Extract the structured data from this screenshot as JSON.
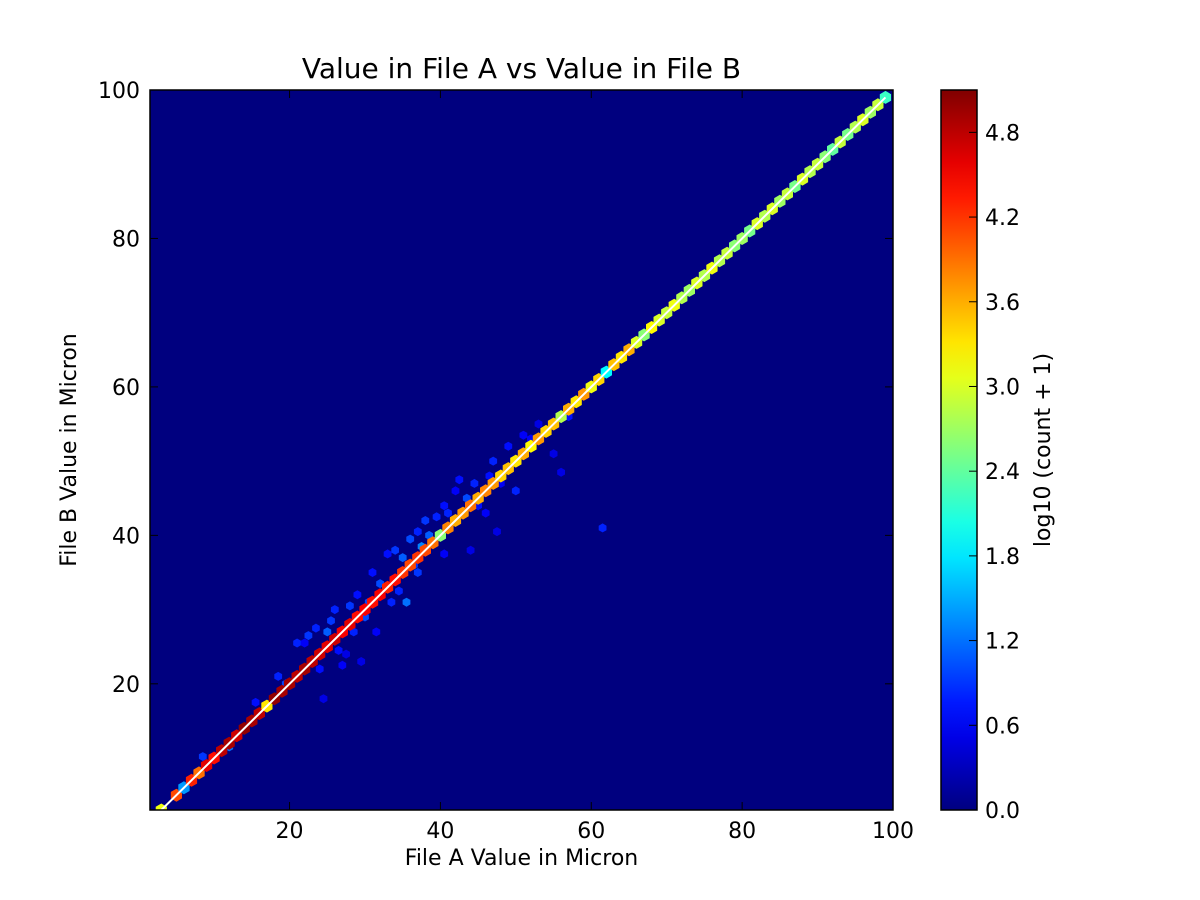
{
  "chart_data": {
    "type": "heatmap",
    "subtype": "hexbin",
    "title": "Value in File A vs Value in File B",
    "xlabel": "File A Value in Micron",
    "ylabel": "File B Value in Micron",
    "xlim": [
      1.5,
      100
    ],
    "ylim": [
      3,
      100
    ],
    "xticks": [
      20,
      40,
      60,
      80,
      100
    ],
    "yticks": [
      20,
      40,
      60,
      80,
      100
    ],
    "colorbar": {
      "label": "log10 (count + 1)",
      "range": [
        0,
        5.1
      ],
      "ticks": [
        0.0,
        0.6,
        1.2,
        1.8,
        2.4,
        3.0,
        3.6,
        4.2,
        4.8
      ],
      "colormap": "jet"
    },
    "grid": false,
    "background_color": "#00007f",
    "reference_line": {
      "x": [
        3,
        99
      ],
      "y": [
        3,
        99
      ],
      "color": "#ffffff",
      "style": "solid"
    },
    "diagonal_bins": [
      {
        "x": 3,
        "v": 3.1
      },
      {
        "x": 5,
        "v": 4.1
      },
      {
        "x": 6,
        "v": 1.4
      },
      {
        "x": 7,
        "v": 4.3
      },
      {
        "x": 8,
        "v": 3.9
      },
      {
        "x": 9,
        "v": 4.6
      },
      {
        "x": 10,
        "v": 4.4
      },
      {
        "x": 11,
        "v": 4.8
      },
      {
        "x": 12,
        "v": 4.9
      },
      {
        "x": 13,
        "v": 4.7
      },
      {
        "x": 14,
        "v": 5.0
      },
      {
        "x": 15,
        "v": 4.9
      },
      {
        "x": 16,
        "v": 4.8
      },
      {
        "x": 17,
        "v": 3.3
      },
      {
        "x": 18,
        "v": 5.0
      },
      {
        "x": 19,
        "v": 4.9
      },
      {
        "x": 20,
        "v": 4.9
      },
      {
        "x": 21,
        "v": 4.8
      },
      {
        "x": 22,
        "v": 4.9
      },
      {
        "x": 23,
        "v": 4.8
      },
      {
        "x": 24,
        "v": 4.7
      },
      {
        "x": 25,
        "v": 4.6
      },
      {
        "x": 26,
        "v": 4.7
      },
      {
        "x": 27,
        "v": 4.5
      },
      {
        "x": 28,
        "v": 4.6
      },
      {
        "x": 29,
        "v": 4.4
      },
      {
        "x": 30,
        "v": 4.5
      },
      {
        "x": 31,
        "v": 4.4
      },
      {
        "x": 32,
        "v": 4.5
      },
      {
        "x": 33,
        "v": 4.3
      },
      {
        "x": 34,
        "v": 4.4
      },
      {
        "x": 35,
        "v": 4.2
      },
      {
        "x": 36,
        "v": 4.1
      },
      {
        "x": 37,
        "v": 4.2
      },
      {
        "x": 38,
        "v": 4.1
      },
      {
        "x": 39,
        "v": 3.9
      },
      {
        "x": 40,
        "v": 2.6
      },
      {
        "x": 41,
        "v": 3.8
      },
      {
        "x": 42,
        "v": 3.6
      },
      {
        "x": 43,
        "v": 3.7
      },
      {
        "x": 44,
        "v": 3.9
      },
      {
        "x": 45,
        "v": 3.6
      },
      {
        "x": 46,
        "v": 3.8
      },
      {
        "x": 47,
        "v": 3.7
      },
      {
        "x": 48,
        "v": 3.4
      },
      {
        "x": 49,
        "v": 3.5
      },
      {
        "x": 50,
        "v": 3.3
      },
      {
        "x": 51,
        "v": 3.6
      },
      {
        "x": 52,
        "v": 3.2
      },
      {
        "x": 53,
        "v": 3.7
      },
      {
        "x": 54,
        "v": 3.4
      },
      {
        "x": 55,
        "v": 3.5
      },
      {
        "x": 56,
        "v": 2.8
      },
      {
        "x": 57,
        "v": 3.6
      },
      {
        "x": 58,
        "v": 3.3
      },
      {
        "x": 59,
        "v": 3.7
      },
      {
        "x": 60,
        "v": 3.1
      },
      {
        "x": 61,
        "v": 3.4
      },
      {
        "x": 62,
        "v": 1.9
      },
      {
        "x": 63,
        "v": 3.5
      },
      {
        "x": 64,
        "v": 3.3
      },
      {
        "x": 65,
        "v": 3.6
      },
      {
        "x": 66,
        "v": 3.0
      },
      {
        "x": 67,
        "v": 2.6
      },
      {
        "x": 68,
        "v": 3.2
      },
      {
        "x": 69,
        "v": 3.0
      },
      {
        "x": 70,
        "v": 2.9
      },
      {
        "x": 71,
        "v": 3.1
      },
      {
        "x": 72,
        "v": 2.8
      },
      {
        "x": 73,
        "v": 2.7
      },
      {
        "x": 74,
        "v": 3.0
      },
      {
        "x": 75,
        "v": 2.8
      },
      {
        "x": 76,
        "v": 3.1
      },
      {
        "x": 77,
        "v": 2.8
      },
      {
        "x": 78,
        "v": 2.9
      },
      {
        "x": 79,
        "v": 2.6
      },
      {
        "x": 80,
        "v": 2.7
      },
      {
        "x": 81,
        "v": 2.5
      },
      {
        "x": 82,
        "v": 3.0
      },
      {
        "x": 83,
        "v": 2.8
      },
      {
        "x": 84,
        "v": 3.0
      },
      {
        "x": 85,
        "v": 2.7
      },
      {
        "x": 86,
        "v": 2.9
      },
      {
        "x": 87,
        "v": 2.5
      },
      {
        "x": 88,
        "v": 3.0
      },
      {
        "x": 89,
        "v": 2.8
      },
      {
        "x": 90,
        "v": 2.9
      },
      {
        "x": 91,
        "v": 2.6
      },
      {
        "x": 92,
        "v": 2.4
      },
      {
        "x": 93,
        "v": 2.9
      },
      {
        "x": 94,
        "v": 2.5
      },
      {
        "x": 95,
        "v": 2.8
      },
      {
        "x": 96,
        "v": 3.0
      },
      {
        "x": 97,
        "v": 2.7
      },
      {
        "x": 98,
        "v": 2.9
      },
      {
        "x": 99,
        "v": 2.2
      }
    ],
    "scatter_bins": [
      {
        "x": 8.5,
        "y": 10.2,
        "v": 0.9
      },
      {
        "x": 12.0,
        "y": 11.5,
        "v": 1.2
      },
      {
        "x": 15.5,
        "y": 17.5,
        "v": 0.7
      },
      {
        "x": 18.5,
        "y": 21.0,
        "v": 0.8
      },
      {
        "x": 19.5,
        "y": 20.0,
        "v": 1.0
      },
      {
        "x": 21.0,
        "y": 25.5,
        "v": 0.8
      },
      {
        "x": 22.0,
        "y": 25.5,
        "v": 0.6
      },
      {
        "x": 22.5,
        "y": 26.5,
        "v": 0.9
      },
      {
        "x": 23.5,
        "y": 27.5,
        "v": 0.8
      },
      {
        "x": 24.0,
        "y": 22.0,
        "v": 0.7
      },
      {
        "x": 24.5,
        "y": 18.0,
        "v": 0.5
      },
      {
        "x": 25.0,
        "y": 27.0,
        "v": 1.1
      },
      {
        "x": 25.5,
        "y": 28.5,
        "v": 0.9
      },
      {
        "x": 26.0,
        "y": 30.0,
        "v": 0.8
      },
      {
        "x": 26.5,
        "y": 24.5,
        "v": 0.7
      },
      {
        "x": 27.0,
        "y": 22.5,
        "v": 0.6
      },
      {
        "x": 27.5,
        "y": 24.0,
        "v": 0.5
      },
      {
        "x": 28.0,
        "y": 30.5,
        "v": 0.9
      },
      {
        "x": 28.5,
        "y": 27.0,
        "v": 0.8
      },
      {
        "x": 29.0,
        "y": 32.0,
        "v": 0.7
      },
      {
        "x": 29.5,
        "y": 23.0,
        "v": 0.5
      },
      {
        "x": 30.0,
        "y": 29.0,
        "v": 1.0
      },
      {
        "x": 31.0,
        "y": 35.0,
        "v": 0.7
      },
      {
        "x": 31.5,
        "y": 27.0,
        "v": 0.6
      },
      {
        "x": 32.0,
        "y": 33.5,
        "v": 1.0
      },
      {
        "x": 33.0,
        "y": 37.5,
        "v": 0.7
      },
      {
        "x": 33.5,
        "y": 31.0,
        "v": 0.8
      },
      {
        "x": 34.0,
        "y": 38.0,
        "v": 0.9
      },
      {
        "x": 34.5,
        "y": 32.5,
        "v": 0.8
      },
      {
        "x": 35.0,
        "y": 37.0,
        "v": 1.1
      },
      {
        "x": 35.5,
        "y": 31.0,
        "v": 1.2
      },
      {
        "x": 36.0,
        "y": 39.5,
        "v": 1.0
      },
      {
        "x": 36.5,
        "y": 36.0,
        "v": 0.9
      },
      {
        "x": 37.0,
        "y": 40.5,
        "v": 0.8
      },
      {
        "x": 37.5,
        "y": 38.5,
        "v": 1.3
      },
      {
        "x": 38.0,
        "y": 42.0,
        "v": 0.9
      },
      {
        "x": 38.5,
        "y": 40.0,
        "v": 1.1
      },
      {
        "x": 39.5,
        "y": 42.5,
        "v": 0.8
      },
      {
        "x": 40.5,
        "y": 44.0,
        "v": 0.7
      },
      {
        "x": 40.5,
        "y": 37.5,
        "v": 0.6
      },
      {
        "x": 41.0,
        "y": 43.0,
        "v": 0.8
      },
      {
        "x": 42.0,
        "y": 46.0,
        "v": 0.6
      },
      {
        "x": 42.5,
        "y": 47.5,
        "v": 0.7
      },
      {
        "x": 43.5,
        "y": 45.0,
        "v": 1.0
      },
      {
        "x": 44.5,
        "y": 47.0,
        "v": 0.8
      },
      {
        "x": 45.0,
        "y": 44.0,
        "v": 0.7
      },
      {
        "x": 46.0,
        "y": 43.0,
        "v": 0.6
      },
      {
        "x": 46.5,
        "y": 48.0,
        "v": 0.7
      },
      {
        "x": 47.0,
        "y": 50.0,
        "v": 0.8
      },
      {
        "x": 47.5,
        "y": 40.5,
        "v": 0.5
      },
      {
        "x": 48.0,
        "y": 47.0,
        "v": 0.6
      },
      {
        "x": 49.0,
        "y": 52.0,
        "v": 0.7
      },
      {
        "x": 50.0,
        "y": 46.0,
        "v": 0.8
      },
      {
        "x": 51.0,
        "y": 53.5,
        "v": 0.6
      },
      {
        "x": 52.0,
        "y": 53.0,
        "v": 0.6
      },
      {
        "x": 53.0,
        "y": 55.0,
        "v": 0.5
      },
      {
        "x": 55.0,
        "y": 51.0,
        "v": 0.5
      },
      {
        "x": 56.0,
        "y": 48.5,
        "v": 0.5
      },
      {
        "x": 57.0,
        "y": 56.0,
        "v": 0.7
      },
      {
        "x": 61.5,
        "y": 41.0,
        "v": 0.8
      },
      {
        "x": 44.0,
        "y": 38.0,
        "v": 0.5
      },
      {
        "x": 37.0,
        "y": 35.0,
        "v": 0.9
      },
      {
        "x": 30.5,
        "y": 31.0,
        "v": 1.0
      }
    ]
  }
}
